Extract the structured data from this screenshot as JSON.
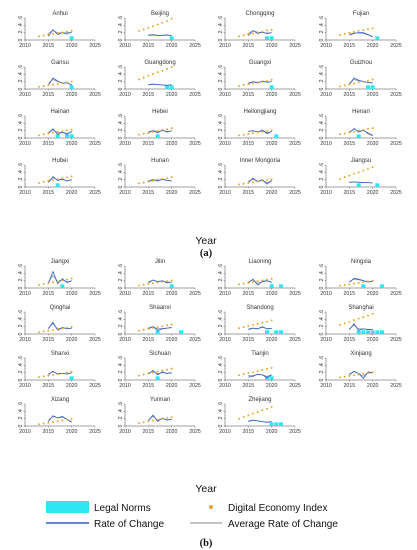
{
  "figure": {
    "caption_a": "(a)",
    "caption_b": "(b)"
  },
  "axes": {
    "xticks": [
      "2010",
      "2015",
      "2020",
      "2025"
    ],
    "yticks": [
      "0",
      ".2",
      ".4",
      ".6"
    ],
    "xlabel": "Year"
  },
  "legend": {
    "legal_norms": "Legal Norms",
    "digital_economy_index": "Digital Economy Index",
    "rate_of_change": "Rate of Change",
    "average_rate_of_change": "Average Rate of Change"
  },
  "colors": {
    "legal_norms": "#2ee6f2",
    "digital_economy_index": "#e9a31c",
    "rate_of_change": "#2d5ec9",
    "average_rate_of_change": "#8a8a8a"
  },
  "chart_data": [
    {
      "type": "line",
      "panel": "a",
      "xlabel": "Year",
      "xlim": [
        2010,
        2025
      ],
      "ylim": [
        0,
        0.6
      ],
      "series_names": [
        "Legal Norms",
        "Digital Economy Index",
        "Rate of Change",
        "Average Rate of Change"
      ],
      "provinces": [
        {
          "name": "Anhui",
          "dei": [
            0.1,
            0.12,
            0.15,
            0.17,
            0.19,
            0.21,
            0.23,
            0.25
          ],
          "roc": [
            0.1,
            0.28,
            0.15,
            0.2,
            0.16,
            0.22
          ],
          "avg": [
            0.18,
            0.26,
            0.2,
            0.19,
            0.2,
            0.21
          ],
          "norms": [
            2020
          ]
        },
        {
          "name": "Beijing",
          "dei": [
            0.25,
            0.29,
            0.33,
            0.38,
            0.42,
            0.47,
            0.52,
            0.58
          ],
          "roc": [
            0.12,
            0.14,
            0.12,
            0.13,
            0.14,
            0.12
          ],
          "avg": [
            0.14,
            0.15,
            0.13,
            0.12,
            0.13,
            0.12
          ],
          "norms": [
            2020
          ]
        },
        {
          "name": "Chongqing",
          "dei": [
            0.1,
            0.13,
            0.16,
            0.18,
            0.21,
            0.23,
            0.26,
            0.28
          ],
          "roc": [
            0.12,
            0.26,
            0.18,
            0.22,
            0.17,
            0.2
          ],
          "avg": [
            0.18,
            0.25,
            0.21,
            0.2,
            0.19,
            0.2
          ],
          "norms": [
            2019,
            2020
          ]
        },
        {
          "name": "Fujian",
          "dei": [
            0.14,
            0.17,
            0.2,
            0.22,
            0.25,
            0.27,
            0.3,
            0.32
          ],
          "roc": [
            0.13,
            0.18,
            0.2,
            0.2,
            0.15,
            0.08
          ],
          "avg": [
            0.16,
            0.19,
            0.19,
            0.18,
            0.14,
            0.1
          ],
          "norms": [
            2021
          ]
        },
        {
          "name": "Gansu",
          "dei": [
            0.06,
            0.08,
            0.1,
            0.12,
            0.14,
            0.16,
            0.18,
            0.2
          ],
          "roc": [
            0.1,
            0.3,
            0.22,
            0.15,
            0.18,
            0.1
          ],
          "avg": [
            0.16,
            0.26,
            0.2,
            0.17,
            0.16,
            0.12
          ],
          "norms": [
            2020
          ]
        },
        {
          "name": "Guangdong",
          "dei": [
            0.26,
            0.31,
            0.36,
            0.41,
            0.46,
            0.5,
            0.55,
            0.6
          ],
          "roc": [
            0.11,
            0.13,
            0.12,
            0.11,
            0.1,
            0.12
          ],
          "avg": [
            0.12,
            0.14,
            0.12,
            0.11,
            0.1,
            0.11
          ],
          "norms": [
            2019,
            2020
          ]
        },
        {
          "name": "Guangxi",
          "dei": [
            0.08,
            0.11,
            0.13,
            0.15,
            0.18,
            0.2,
            0.22,
            0.25
          ],
          "roc": [
            0.14,
            0.2,
            0.16,
            0.22,
            0.18,
            0.2
          ],
          "avg": [
            0.17,
            0.2,
            0.18,
            0.2,
            0.19,
            0.2
          ],
          "norms": [
            2020
          ]
        },
        {
          "name": "Guizhou",
          "dei": [
            0.07,
            0.1,
            0.12,
            0.15,
            0.18,
            0.2,
            0.23,
            0.26
          ],
          "roc": [
            0.12,
            0.3,
            0.24,
            0.2,
            0.18,
            0.16
          ],
          "avg": [
            0.16,
            0.26,
            0.22,
            0.2,
            0.18,
            0.17
          ],
          "norms": [
            2019,
            2020
          ]
        },
        {
          "name": "Hainan",
          "dei": [
            0.07,
            0.1,
            0.12,
            0.15,
            0.17,
            0.19,
            0.21,
            0.23
          ],
          "roc": [
            0.12,
            0.25,
            0.1,
            0.16,
            0.1,
            0.18
          ],
          "avg": [
            0.16,
            0.22,
            0.15,
            0.15,
            0.13,
            0.16
          ],
          "norms": [
            2017,
            2019,
            2020
          ]
        },
        {
          "name": "Hebei",
          "dei": [
            0.09,
            0.12,
            0.14,
            0.17,
            0.19,
            0.22,
            0.24,
            0.27
          ],
          "roc": [
            0.14,
            0.2,
            0.14,
            0.22,
            0.16,
            0.2
          ],
          "avg": [
            0.17,
            0.2,
            0.18,
            0.2,
            0.18,
            0.19
          ],
          "norms": [
            2017
          ]
        },
        {
          "name": "Heilongjiang",
          "dei": [
            0.07,
            0.09,
            0.11,
            0.13,
            0.15,
            0.17,
            0.19,
            0.21
          ],
          "roc": [
            0.18,
            0.2,
            0.16,
            0.22,
            0.12,
            0.18
          ],
          "avg": [
            0.18,
            0.19,
            0.17,
            0.19,
            0.15,
            0.17
          ],
          "norms": [
            2021
          ]
        },
        {
          "name": "Henan",
          "dei": [
            0.1,
            0.12,
            0.15,
            0.17,
            0.2,
            0.22,
            0.25,
            0.27
          ],
          "roc": [
            0.14,
            0.26,
            0.16,
            0.22,
            0.12,
            0.06
          ],
          "avg": [
            0.17,
            0.24,
            0.19,
            0.2,
            0.14,
            0.08
          ],
          "norms": [
            2017
          ]
        },
        {
          "name": "Hubei",
          "dei": [
            0.11,
            0.14,
            0.16,
            0.19,
            0.21,
            0.24,
            0.26,
            0.29
          ],
          "roc": [
            0.12,
            0.28,
            0.18,
            0.22,
            0.16,
            0.2
          ],
          "avg": [
            0.17,
            0.25,
            0.2,
            0.2,
            0.17,
            0.19
          ],
          "norms": [
            2017
          ]
        },
        {
          "name": "Hunan",
          "dei": [
            0.1,
            0.12,
            0.15,
            0.17,
            0.2,
            0.22,
            0.24,
            0.27
          ],
          "roc": [
            0.14,
            0.2,
            0.16,
            0.22,
            0.18,
            0.16
          ],
          "avg": [
            0.17,
            0.2,
            0.18,
            0.2,
            0.18,
            0.17
          ],
          "norms": []
        },
        {
          "name": "Inner Mongoria",
          "dei": [
            0.07,
            0.09,
            0.11,
            0.13,
            0.15,
            0.17,
            0.19,
            0.21
          ],
          "roc": [
            0.12,
            0.24,
            0.14,
            0.2,
            0.08,
            0.18
          ],
          "avg": [
            0.16,
            0.21,
            0.16,
            0.18,
            0.12,
            0.16
          ],
          "norms": []
        },
        {
          "name": "Jiangsu",
          "dei": [
            0.22,
            0.27,
            0.31,
            0.36,
            0.4,
            0.45,
            0.49,
            0.54
          ],
          "roc": [
            0.12,
            0.14,
            0.13,
            0.12,
            0.12,
            0.11
          ],
          "avg": [
            0.13,
            0.14,
            0.13,
            0.12,
            0.12,
            0.11
          ],
          "norms": [
            2017,
            2021
          ]
        }
      ]
    },
    {
      "type": "line",
      "panel": "b",
      "xlabel": "Year",
      "xlim": [
        2010,
        2025
      ],
      "ylim": [
        0,
        0.6
      ],
      "series_names": [
        "Legal Norms",
        "Digital Economy Index",
        "Rate of Change",
        "Average Rate of Change"
      ],
      "provinces": [
        {
          "name": "Jiangxi",
          "dei": [
            0.08,
            0.11,
            0.13,
            0.16,
            0.18,
            0.21,
            0.23,
            0.26
          ],
          "roc": [
            0.12,
            0.45,
            0.12,
            0.25,
            0.15,
            0.2
          ],
          "avg": [
            0.16,
            0.34,
            0.18,
            0.22,
            0.17,
            0.19
          ],
          "norms": [
            2018
          ]
        },
        {
          "name": "Jilin",
          "dei": [
            0.07,
            0.09,
            0.11,
            0.13,
            0.15,
            0.17,
            0.19,
            0.21
          ],
          "roc": [
            0.14,
            0.22,
            0.16,
            0.2,
            0.14,
            0.16
          ],
          "avg": [
            0.17,
            0.21,
            0.18,
            0.19,
            0.16,
            0.16
          ],
          "norms": [
            2020
          ]
        },
        {
          "name": "Liaoning",
          "dei": [
            0.1,
            0.12,
            0.14,
            0.16,
            0.19,
            0.21,
            0.23,
            0.25
          ],
          "roc": [
            0.14,
            0.24,
            0.08,
            0.18,
            0.2,
            0.15
          ],
          "avg": [
            0.17,
            0.22,
            0.13,
            0.17,
            0.19,
            0.16
          ],
          "norms": [
            2020,
            2022
          ]
        },
        {
          "name": "Ningxia",
          "dei": [
            0.06,
            0.08,
            0.1,
            0.12,
            0.14,
            0.16,
            0.18,
            0.2
          ],
          "roc": [
            0.16,
            0.26,
            0.24,
            0.2,
            0.16,
            0.18
          ],
          "avg": [
            0.18,
            0.24,
            0.22,
            0.2,
            0.17,
            0.18
          ],
          "norms": [
            2018,
            2022
          ]
        },
        {
          "name": "Qinghai",
          "dei": [
            0.05,
            0.07,
            0.09,
            0.11,
            0.13,
            0.15,
            0.17,
            0.19
          ],
          "roc": [
            0.14,
            0.32,
            0.1,
            0.18,
            0.14,
            0.16
          ],
          "avg": [
            0.17,
            0.28,
            0.14,
            0.17,
            0.15,
            0.16
          ],
          "norms": []
        },
        {
          "name": "Shaanxi",
          "dei": [
            0.09,
            0.12,
            0.14,
            0.17,
            0.19,
            0.21,
            0.24,
            0.26
          ],
          "roc": [
            0.14,
            0.2,
            0.1,
            0.14,
            0.16,
            0.18
          ],
          "avg": [
            0.17,
            0.2,
            0.14,
            0.15,
            0.16,
            0.17
          ],
          "norms": [
            2017,
            2022
          ]
        },
        {
          "name": "Shandong",
          "dei": [
            0.16,
            0.19,
            0.22,
            0.25,
            0.28,
            0.31,
            0.34,
            0.37
          ],
          "roc": [
            0.12,
            0.16,
            0.14,
            0.2,
            0.14,
            0.15
          ],
          "avg": [
            0.14,
            0.16,
            0.15,
            0.18,
            0.15,
            0.15
          ],
          "norms": [
            2019,
            2021,
            2022
          ]
        },
        {
          "name": "Shanghai",
          "dei": [
            0.25,
            0.29,
            0.33,
            0.38,
            0.42,
            0.46,
            0.5,
            0.55
          ],
          "roc": [
            0.12,
            0.28,
            0.1,
            0.14,
            0.12,
            0.12
          ],
          "avg": [
            0.14,
            0.24,
            0.14,
            0.14,
            0.13,
            0.12
          ],
          "norms": [
            2017,
            2018,
            2019,
            2020,
            2021,
            2022
          ]
        },
        {
          "name": "Shanxi",
          "dei": [
            0.08,
            0.1,
            0.12,
            0.14,
            0.16,
            0.18,
            0.21,
            0.23
          ],
          "roc": [
            0.14,
            0.24,
            0.16,
            0.18,
            0.16,
            0.2
          ],
          "avg": [
            0.17,
            0.22,
            0.18,
            0.18,
            0.17,
            0.19
          ],
          "norms": [
            2020
          ]
        },
        {
          "name": "Sichuan",
          "dei": [
            0.12,
            0.15,
            0.18,
            0.2,
            0.23,
            0.26,
            0.28,
            0.31
          ],
          "roc": [
            0.16,
            0.26,
            0.14,
            0.22,
            0.18,
            0.2
          ],
          "avg": [
            0.18,
            0.24,
            0.17,
            0.2,
            0.18,
            0.19
          ],
          "norms": [
            2017
          ]
        },
        {
          "name": "Tianjin",
          "dei": [
            0.13,
            0.16,
            0.19,
            0.21,
            0.24,
            0.27,
            0.3,
            0.33
          ],
          "roc": [
            0.08,
            0.1,
            0.16,
            0.14,
            0.06,
            0.14
          ],
          "avg": [
            0.12,
            0.12,
            0.15,
            0.14,
            0.1,
            0.14
          ],
          "norms": [
            2019,
            2020
          ]
        },
        {
          "name": "Xinjiang",
          "dei": [
            0.07,
            0.09,
            0.11,
            0.13,
            0.15,
            0.17,
            0.19,
            0.21
          ],
          "roc": [
            0.14,
            0.24,
            0.18,
            0.04,
            0.22,
            0.2
          ],
          "avg": [
            0.17,
            0.22,
            0.18,
            0.1,
            0.2,
            0.19
          ],
          "norms": []
        },
        {
          "name": "Xizang",
          "dei": [
            0.05,
            0.07,
            0.09,
            0.11,
            0.13,
            0.15,
            0.17,
            0.19
          ],
          "roc": [
            0.12,
            0.28,
            0.22,
            0.26,
            0.18,
            0.1
          ],
          "avg": [
            0.16,
            0.26,
            0.22,
            0.24,
            0.18,
            0.12
          ],
          "norms": []
        },
        {
          "name": "Yunnan",
          "dei": [
            0.08,
            0.1,
            0.13,
            0.15,
            0.17,
            0.2,
            0.22,
            0.24
          ],
          "roc": [
            0.14,
            0.3,
            0.12,
            0.22,
            0.16,
            0.18
          ],
          "avg": [
            0.17,
            0.26,
            0.16,
            0.2,
            0.17,
            0.18
          ],
          "norms": []
        },
        {
          "name": "Zhejiang",
          "dei": [
            0.2,
            0.25,
            0.29,
            0.34,
            0.38,
            0.43,
            0.47,
            0.52
          ],
          "roc": [
            0.12,
            0.16,
            0.14,
            0.12,
            0.1,
            0.12
          ],
          "avg": [
            0.14,
            0.16,
            0.14,
            0.12,
            0.11,
            0.12
          ],
          "norms": [
            2020,
            2021,
            2022
          ]
        }
      ]
    }
  ]
}
